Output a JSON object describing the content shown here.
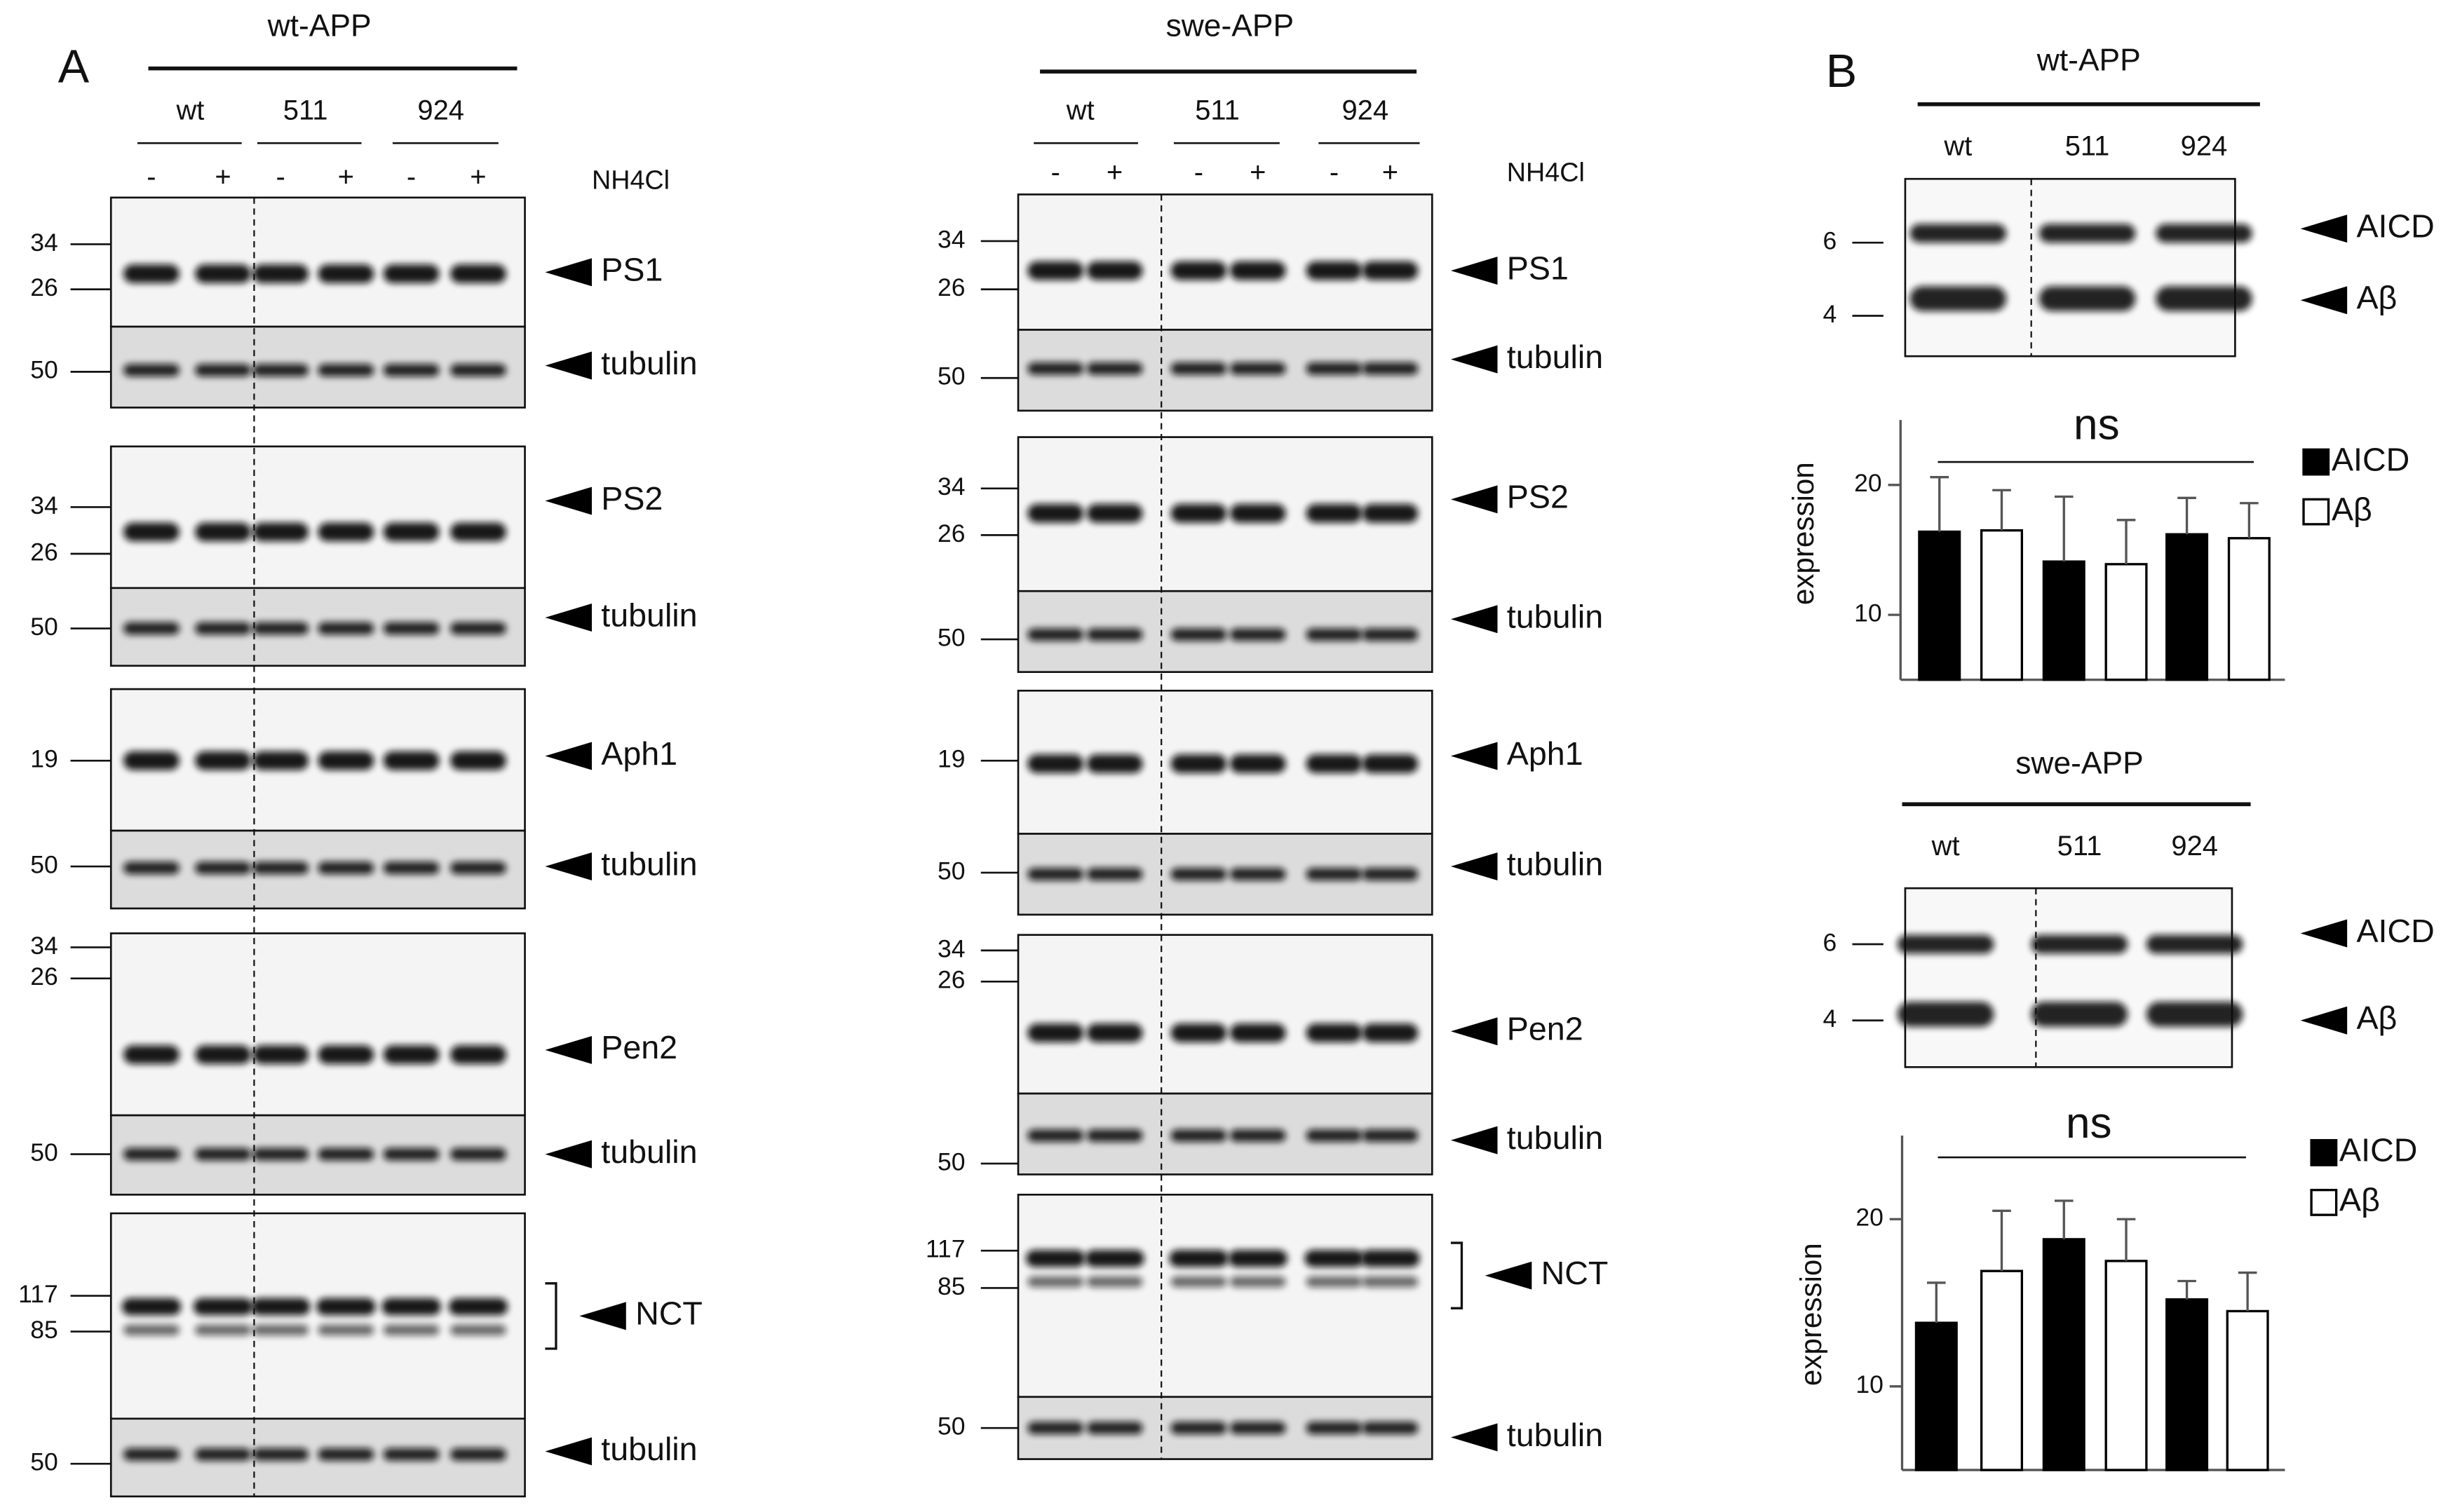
{
  "panel_a": {
    "label": "A",
    "columns": [
      {
        "title": "wt-APP",
        "groups": [
          "wt",
          "511",
          "924"
        ],
        "signs": [
          "-",
          "+",
          "-",
          "+",
          "-",
          "+"
        ],
        "treatment": "NH4Cl",
        "blots": [
          {
            "markers": [
              "34",
              "26"
            ],
            "label": "PS1"
          },
          {
            "markers": [
              "50"
            ],
            "label": "tubulin"
          },
          {
            "markers": [
              "34",
              "26"
            ],
            "label": "PS2"
          },
          {
            "markers": [
              "50"
            ],
            "label": "tubulin"
          },
          {
            "markers": [
              "19"
            ],
            "label": "Aph1"
          },
          {
            "markers": [
              "50"
            ],
            "label": "tubulin"
          },
          {
            "markers": [
              "34",
              "26"
            ],
            "label": "Pen2"
          },
          {
            "markers": [
              "50"
            ],
            "label": "tubulin"
          },
          {
            "markers": [
              "117",
              "85"
            ],
            "label": "NCT"
          },
          {
            "markers": [
              "50"
            ],
            "label": "tubulin"
          }
        ]
      },
      {
        "title": "swe-APP",
        "groups": [
          "wt",
          "511",
          "924"
        ],
        "signs": [
          "-",
          "+",
          "-",
          "+",
          "-",
          "+"
        ],
        "treatment": "NH4Cl",
        "blots": [
          {
            "markers": [
              "34",
              "26"
            ],
            "label": "PS1"
          },
          {
            "markers": [
              "50"
            ],
            "label": "tubulin"
          },
          {
            "markers": [
              "34",
              "26"
            ],
            "label": "PS2"
          },
          {
            "markers": [
              "50"
            ],
            "label": "tubulin"
          },
          {
            "markers": [
              "19"
            ],
            "label": "Aph1"
          },
          {
            "markers": [
              "50"
            ],
            "label": "tubulin"
          },
          {
            "markers": [
              "34",
              "26"
            ],
            "label": "Pen2"
          },
          {
            "markers": [
              "50"
            ],
            "label": "tubulin"
          },
          {
            "markers": [
              "117",
              "85"
            ],
            "label": "NCT"
          },
          {
            "markers": [
              "50"
            ],
            "label": "tubulin"
          }
        ]
      }
    ]
  },
  "panel_b": {
    "label": "B",
    "blots": [
      {
        "title": "wt-APP",
        "lanes": [
          "wt",
          "511",
          "924"
        ],
        "markers": [
          "6",
          "4"
        ],
        "bands": [
          "AICD",
          "Aβ"
        ]
      },
      {
        "title": "swe-APP",
        "lanes": [
          "wt",
          "511",
          "924"
        ],
        "markers": [
          "6",
          "4"
        ],
        "bands": [
          "AICD",
          "Aβ"
        ]
      }
    ]
  },
  "chart_data": [
    {
      "type": "bar",
      "ylabel": "expression",
      "annotation": "ns",
      "categories": [
        null,
        null,
        null
      ],
      "series": [
        {
          "name": "AICD",
          "color": "#000000",
          "values": [
            16.4,
            14.1,
            16.2
          ],
          "errors": [
            4.2,
            5.0,
            2.8
          ]
        },
        {
          "name": "Aβ",
          "color": "#ffffff",
          "values": [
            16.5,
            13.9,
            15.9
          ],
          "errors": [
            3.1,
            3.4,
            2.7
          ]
        }
      ],
      "ylim": [
        5,
        25
      ],
      "yticks": [
        10,
        20
      ],
      "legend": "right"
    },
    {
      "type": "bar",
      "ylabel": "expression",
      "annotation": "ns",
      "categories": [
        null,
        null,
        null
      ],
      "series": [
        {
          "name": "AICD",
          "color": "#000000",
          "values": [
            13.8,
            18.8,
            15.2
          ],
          "errors": [
            2.4,
            2.3,
            1.1
          ]
        },
        {
          "name": "Aβ",
          "color": "#ffffff",
          "values": [
            16.9,
            17.5,
            14.5
          ],
          "errors": [
            3.6,
            2.5,
            2.3
          ]
        }
      ],
      "ylim": [
        5,
        25
      ],
      "yticks": [
        10,
        20
      ],
      "legend": "right"
    }
  ]
}
